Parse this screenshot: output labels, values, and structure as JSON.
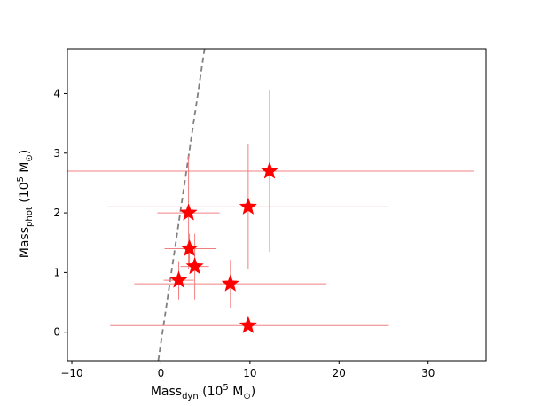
{
  "chart_data": {
    "type": "scatter",
    "title": "",
    "xlabel": {
      "base": "Mass",
      "subscript": "dyn",
      "unit_prefix": " (10",
      "unit_exponent": "5",
      "unit_suffix": " M",
      "unit_symbol": "⊙",
      "unit_close": ")"
    },
    "ylabel": {
      "base": "Mass",
      "subscript": "phot",
      "unit_prefix": " (10",
      "unit_exponent": "5",
      "unit_suffix": " M",
      "unit_symbol": "⊙",
      "unit_close": ")"
    },
    "xlim": [
      -10.5,
      36.5
    ],
    "ylim": [
      -0.48,
      4.75
    ],
    "xticks": [
      -10,
      0,
      10,
      20,
      30
    ],
    "yticks": [
      0,
      1,
      2,
      3,
      4
    ],
    "grid": false,
    "marker": "star",
    "marker_color": "#ff0000",
    "errorbar_color": "#f08080",
    "reference_line": {
      "style": "dashed",
      "color": "#808080",
      "points": [
        [
          -0.3,
          -0.48
        ],
        [
          4.9,
          4.75
        ]
      ]
    },
    "points": [
      {
        "x": 12.2,
        "y": 2.7,
        "x_err": [
          47.5,
          23.0
        ],
        "y_err": [
          1.35,
          1.35
        ]
      },
      {
        "x": 3.1,
        "y": 2.0,
        "x_err": [
          3.5,
          3.5
        ],
        "y_err": [
          0.95,
          0.95
        ]
      },
      {
        "x": 9.8,
        "y": 2.1,
        "x_err": [
          15.8,
          15.8
        ],
        "y_err": [
          1.05,
          1.05
        ]
      },
      {
        "x": 3.2,
        "y": 1.4,
        "x_err": [
          2.8,
          3.0
        ],
        "y_err": [
          0.25,
          0.25
        ]
      },
      {
        "x": 3.8,
        "y": 1.1,
        "x_err": [
          1.6,
          1.6
        ],
        "y_err": [
          0.55,
          0.55
        ]
      },
      {
        "x": 2.0,
        "y": 0.87,
        "x_err": [
          1.7,
          1.7
        ],
        "y_err": [
          0.32,
          0.32
        ]
      },
      {
        "x": 7.8,
        "y": 0.81,
        "x_err": [
          10.8,
          10.8
        ],
        "y_err": [
          0.4,
          0.4
        ]
      },
      {
        "x": 9.8,
        "y": 0.11,
        "x_err": [
          15.5,
          15.8
        ],
        "y_err": [
          0.0,
          0.0
        ]
      }
    ]
  }
}
